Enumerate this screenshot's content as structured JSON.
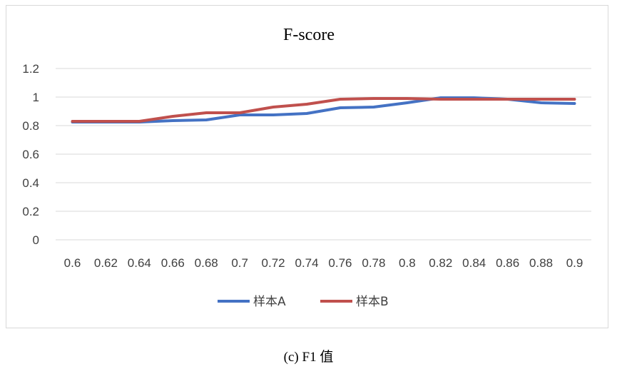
{
  "caption": "(c) F1 值",
  "colors": {
    "series_a": "#4472C4",
    "series_b": "#C0504D",
    "grid": "#d9d9d9",
    "tick": "#404040"
  },
  "chart_data": {
    "type": "line",
    "title": "F-score",
    "x": [
      "0.6",
      "0.62",
      "0.64",
      "0.66",
      "0.68",
      "0.7",
      "0.72",
      "0.74",
      "0.76",
      "0.78",
      "0.8",
      "0.82",
      "0.84",
      "0.86",
      "0.88",
      "0.9"
    ],
    "ylim": [
      0,
      1.2
    ],
    "yticks": [
      "0",
      "0.2",
      "0.4",
      "0.6",
      "0.8",
      "1",
      "1.2"
    ],
    "grid": true,
    "legend": "bottom",
    "series": [
      {
        "name": "样本A",
        "color": "#4472C4",
        "values": [
          0.825,
          0.825,
          0.825,
          0.835,
          0.84,
          0.875,
          0.875,
          0.885,
          0.925,
          0.93,
          0.96,
          0.995,
          0.995,
          0.985,
          0.96,
          0.955
        ]
      },
      {
        "name": "样本B",
        "color": "#C0504D",
        "values": [
          0.83,
          0.83,
          0.83,
          0.865,
          0.89,
          0.89,
          0.93,
          0.95,
          0.985,
          0.99,
          0.99,
          0.985,
          0.985,
          0.985,
          0.985,
          0.985
        ]
      }
    ]
  }
}
